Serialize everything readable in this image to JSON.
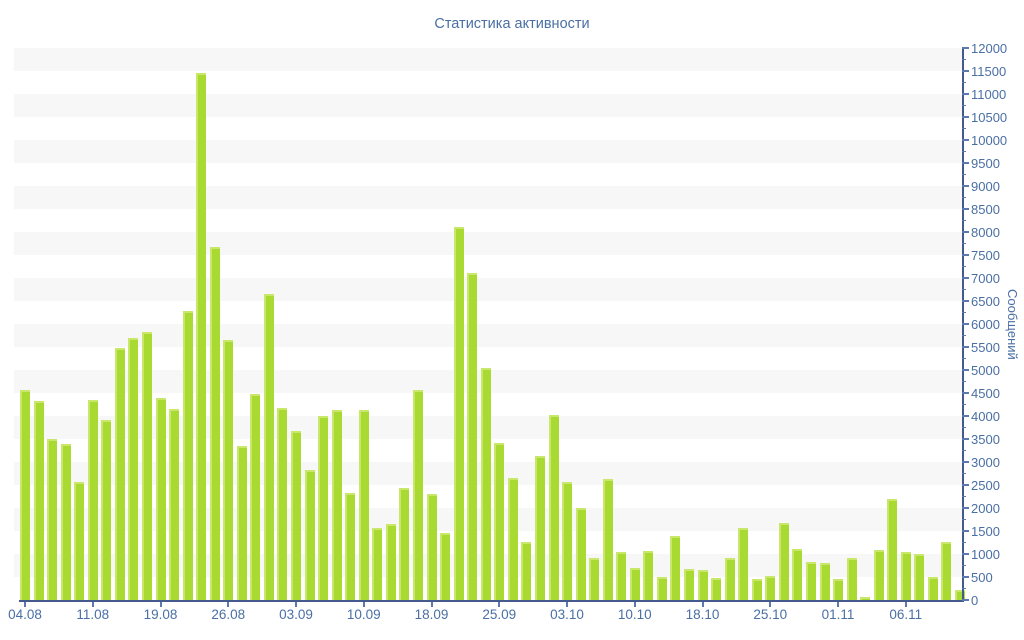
{
  "chart_data": {
    "type": "bar",
    "title": "Статистика активности",
    "ylabel": "Сообщений",
    "xlabel": "",
    "ylim": [
      0,
      12000
    ],
    "y_tick_step": 500,
    "y_minor_tick_step": 250,
    "legend_position": "none",
    "grid": "striped horizontal bands every 500",
    "values": [
      4570,
      4330,
      3510,
      3400,
      2560,
      4350,
      3910,
      5470,
      5700,
      5820,
      4400,
      4150,
      6280,
      11450,
      7670,
      5650,
      3350,
      4480,
      6650,
      4180,
      3670,
      2830,
      3990,
      4140,
      2320,
      4120,
      1560,
      1650,
      2430,
      4570,
      2300,
      1460,
      8100,
      7100,
      5040,
      3410,
      2650,
      1250,
      3120,
      4020,
      2560,
      2000,
      920,
      2630,
      1050,
      700,
      1070,
      510,
      1400,
      670,
      650,
      470,
      920,
      1570,
      460,
      530,
      1670,
      1110,
      820,
      800,
      460,
      920,
      70,
      1090,
      2190,
      1050,
      1010,
      510,
      1250,
      220
    ],
    "x_tick_labels": [
      {
        "index": 0,
        "label": "04.08"
      },
      {
        "index": 5,
        "label": "11.08"
      },
      {
        "index": 10,
        "label": "19.08"
      },
      {
        "index": 15,
        "label": "26.08"
      },
      {
        "index": 20,
        "label": "03.09"
      },
      {
        "index": 25,
        "label": "10.09"
      },
      {
        "index": 30,
        "label": "18.09"
      },
      {
        "index": 35,
        "label": "25.09"
      },
      {
        "index": 40,
        "label": "03.10"
      },
      {
        "index": 45,
        "label": "10.10"
      },
      {
        "index": 50,
        "label": "18.10"
      },
      {
        "index": 55,
        "label": "25.10"
      },
      {
        "index": 60,
        "label": "01.11"
      },
      {
        "index": 65,
        "label": "06.11"
      }
    ]
  },
  "colors": {
    "bar": "#a9da32",
    "bar_highlight": "#c9e76a",
    "label_text": "#4a6fa5",
    "axis_line": "#44598c",
    "stripe": "#f7f7f7",
    "background": "#ffffff"
  }
}
